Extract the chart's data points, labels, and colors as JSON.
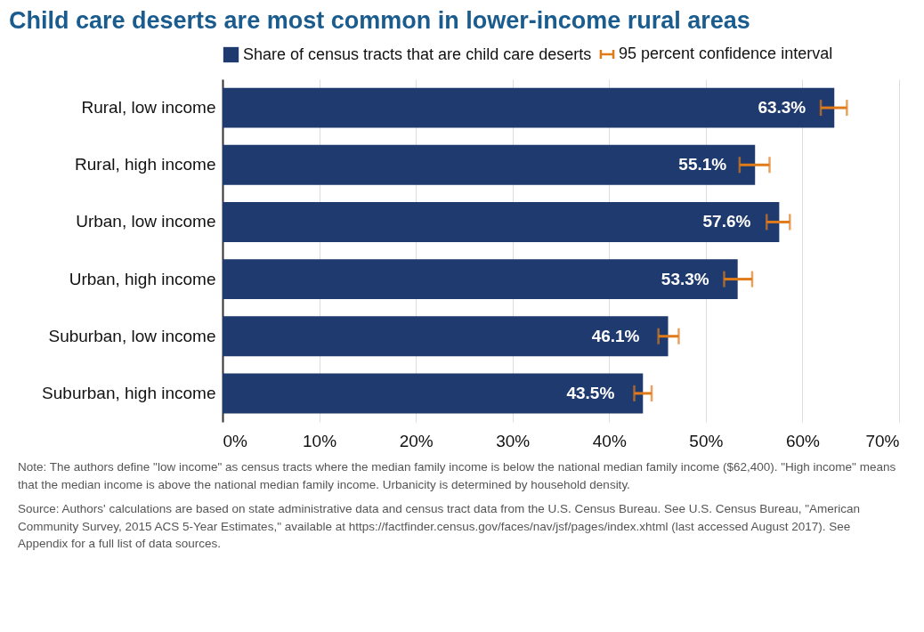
{
  "chart_data": {
    "type": "bar",
    "orientation": "horizontal",
    "title": "Child care deserts are most common in lower-income rural areas",
    "categories": [
      "Rural, low income",
      "Rural, high income",
      "Urban, low income",
      "Urban, high income",
      "Suburban, low income",
      "Suburban, high income"
    ],
    "series": [
      {
        "name": "Share of census tracts that are child care deserts",
        "color": "#1f3a6e",
        "values": [
          63.3,
          55.1,
          57.6,
          53.3,
          46.1,
          43.5
        ],
        "value_labels": [
          "63.3%",
          "55.1%",
          "57.6%",
          "53.3%",
          "46.1%",
          "43.5%"
        ],
        "errors": [
          [
            61.9,
            64.6
          ],
          [
            53.5,
            56.6
          ],
          [
            56.3,
            58.7
          ],
          [
            51.9,
            54.8
          ],
          [
            45.1,
            47.2
          ],
          [
            42.6,
            44.4
          ]
        ]
      }
    ],
    "xlim": [
      0,
      70
    ],
    "xticks": [
      {
        "value": 0,
        "label": "0%"
      },
      {
        "value": 10,
        "label": "10%"
      },
      {
        "value": 20,
        "label": "20%"
      },
      {
        "value": 30,
        "label": "30%"
      },
      {
        "value": 40,
        "label": "40%"
      },
      {
        "value": 50,
        "label": "50%"
      },
      {
        "value": 60,
        "label": "60%"
      },
      {
        "value": 70,
        "label": "70%"
      }
    ],
    "grid": "x",
    "legend": "top",
    "annotations": [
      "95 percent confidence interval",
      "Note: The authors define \"low income\" as census tracts where the median family income is below the national median family income ($62,400). \"High income\" means that the median income is above the national median family income. Urbanicity is determined by household density.",
      "Source: Authors' calculations are based on state administrative data and census tract data from the U.S. Census Bureau. See U.S. Census Bureau, \"American Community Survey, 2015 ACS 5-Year Estimates,\" available at https://factfinder.census.gov/faces/nav/jsf/pages/index.xhtml (last accessed August 2017). See Appendix for a full list of data sources."
    ]
  }
}
